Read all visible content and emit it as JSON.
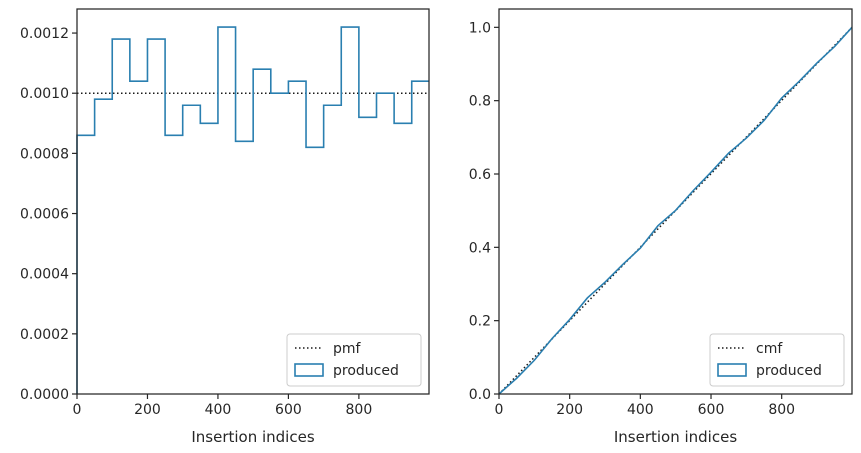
{
  "colors": {
    "produced": "#2a7fb0",
    "reference": "#1a1a1a",
    "axes": "#262626"
  },
  "chart_data": [
    {
      "type": "histogram-step",
      "xlabel": "Insertion indices",
      "ylabel": "",
      "xlim": [
        0,
        999
      ],
      "ylim": [
        0,
        0.00128
      ],
      "xticks": [
        0,
        200,
        400,
        600,
        800
      ],
      "xtick_labels": [
        "0",
        "200",
        "400",
        "600",
        "800"
      ],
      "yticks": [
        0,
        0.0002,
        0.0004,
        0.0006,
        0.0008,
        0.001,
        0.0012
      ],
      "ytick_labels": [
        "0.0000",
        "0.0002",
        "0.0004",
        "0.0006",
        "0.0008",
        "0.0010",
        "0.0012"
      ],
      "legend_position": "lower-right",
      "bin_width": 50,
      "bin_edges": [
        0,
        50,
        100,
        150,
        200,
        250,
        300,
        350,
        400,
        450,
        500,
        550,
        600,
        650,
        700,
        750,
        800,
        850,
        900,
        950,
        1000
      ],
      "series": [
        {
          "name": "pmf",
          "style": "dotted",
          "x": [
            0,
            999
          ],
          "y": [
            0.001,
            0.001
          ]
        },
        {
          "name": "produced",
          "style": "step",
          "values": [
            0.00086,
            0.00098,
            0.00118,
            0.00104,
            0.00118,
            0.00086,
            0.00096,
            0.0009,
            0.00122,
            0.00084,
            0.00108,
            0.001,
            0.00104,
            0.00082,
            0.00096,
            0.00122,
            0.00092,
            0.001,
            0.0009,
            0.00104
          ]
        }
      ]
    },
    {
      "type": "cumulative-step",
      "xlabel": "Insertion indices",
      "ylabel": "",
      "xlim": [
        0,
        999
      ],
      "ylim": [
        0,
        1.05
      ],
      "xticks": [
        0,
        200,
        400,
        600,
        800
      ],
      "xtick_labels": [
        "0",
        "200",
        "400",
        "600",
        "800"
      ],
      "yticks": [
        0,
        0.2,
        0.4,
        0.6,
        0.8,
        1.0
      ],
      "ytick_labels": [
        "0.0",
        "0.2",
        "0.4",
        "0.6",
        "0.8",
        "1.0"
      ],
      "legend_position": "lower-right",
      "series": [
        {
          "name": "cmf",
          "style": "dotted",
          "x": [
            0,
            999
          ],
          "y": [
            0,
            1.0
          ]
        },
        {
          "name": "produced",
          "style": "step",
          "x": [
            0,
            50,
            100,
            150,
            200,
            250,
            300,
            350,
            400,
            450,
            500,
            550,
            600,
            650,
            700,
            750,
            800,
            850,
            900,
            950,
            999
          ],
          "y": [
            0,
            0.043,
            0.092,
            0.151,
            0.203,
            0.262,
            0.305,
            0.353,
            0.398,
            0.459,
            0.501,
            0.555,
            0.605,
            0.657,
            0.698,
            0.746,
            0.807,
            0.853,
            0.903,
            0.948,
            1.0
          ]
        }
      ]
    }
  ]
}
